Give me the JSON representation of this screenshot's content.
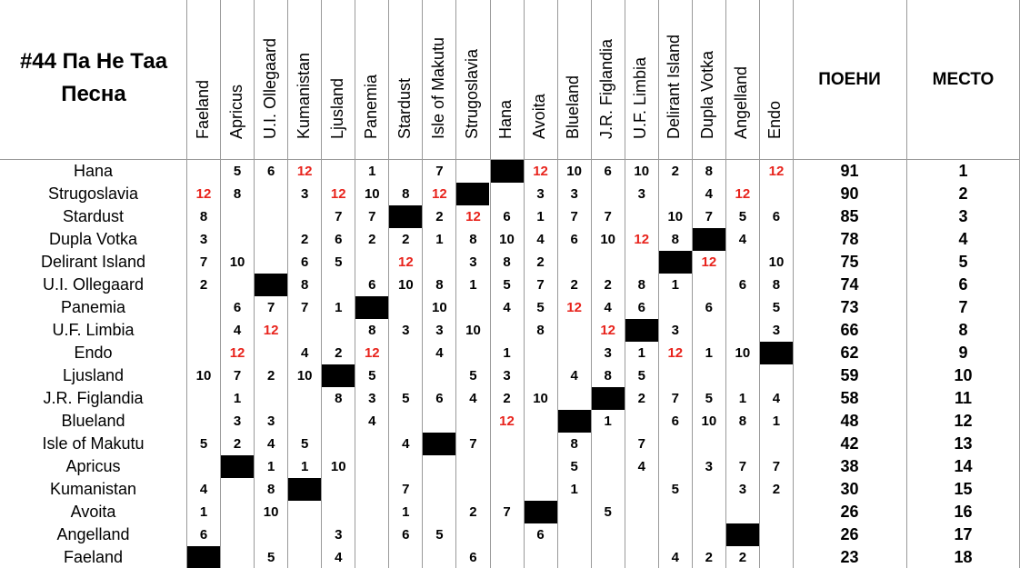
{
  "title": "#44 Па Не Таа Песна",
  "columns": [
    "Faeland",
    "Apricus",
    "U.I. Ollegaard",
    "Kumanistan",
    "Ljusland",
    "Panemia",
    "Stardust",
    "Isle of Makutu",
    "Strugoslavia",
    "Hana",
    "Avoita",
    "Blueland",
    "J.R. Figlandia",
    "U.F. Limbia",
    "Delirant Island",
    "Dupla Votka",
    "Angelland",
    "Endo"
  ],
  "total_header": "ПОЕНИ",
  "place_header": "МЕСТО",
  "rows": [
    {
      "country": "Hana",
      "votes": [
        null,
        5,
        6,
        12,
        null,
        1,
        null,
        7,
        null,
        null,
        12,
        10,
        6,
        10,
        2,
        8,
        null,
        12
      ],
      "total": 91,
      "place": 1
    },
    {
      "country": "Strugoslavia",
      "votes": [
        12,
        8,
        null,
        3,
        12,
        10,
        8,
        12,
        null,
        null,
        3,
        3,
        null,
        3,
        null,
        4,
        12,
        null
      ],
      "total": 90,
      "place": 2
    },
    {
      "country": "Stardust",
      "votes": [
        8,
        null,
        null,
        null,
        7,
        7,
        null,
        2,
        12,
        6,
        1,
        7,
        7,
        null,
        10,
        7,
        5,
        6
      ],
      "total": 85,
      "place": 3
    },
    {
      "country": "Dupla Votka",
      "votes": [
        3,
        null,
        null,
        2,
        6,
        2,
        2,
        1,
        8,
        10,
        4,
        6,
        10,
        12,
        8,
        null,
        4,
        null
      ],
      "total": 78,
      "place": 4
    },
    {
      "country": "Delirant Island",
      "votes": [
        7,
        10,
        null,
        6,
        5,
        null,
        12,
        null,
        3,
        8,
        2,
        null,
        null,
        null,
        null,
        12,
        null,
        10
      ],
      "total": 75,
      "place": 5
    },
    {
      "country": "U.I. Ollegaard",
      "votes": [
        2,
        null,
        null,
        8,
        null,
        6,
        10,
        8,
        1,
        5,
        7,
        2,
        2,
        8,
        1,
        null,
        6,
        8
      ],
      "total": 74,
      "place": 6
    },
    {
      "country": "Panemia",
      "votes": [
        null,
        6,
        7,
        7,
        1,
        null,
        null,
        10,
        null,
        4,
        5,
        12,
        4,
        6,
        null,
        6,
        null,
        5
      ],
      "total": 73,
      "place": 7
    },
    {
      "country": "U.F. Limbia",
      "votes": [
        null,
        4,
        12,
        null,
        null,
        8,
        3,
        3,
        10,
        null,
        8,
        null,
        12,
        null,
        3,
        null,
        null,
        3
      ],
      "total": 66,
      "place": 8
    },
    {
      "country": "Endo",
      "votes": [
        null,
        12,
        null,
        4,
        2,
        12,
        null,
        4,
        null,
        1,
        null,
        null,
        3,
        1,
        12,
        1,
        10,
        null
      ],
      "total": 62,
      "place": 9
    },
    {
      "country": "Ljusland",
      "votes": [
        10,
        7,
        2,
        10,
        null,
        5,
        null,
        null,
        5,
        3,
        null,
        4,
        8,
        5,
        null,
        null,
        null,
        null
      ],
      "total": 59,
      "place": 10
    },
    {
      "country": "J.R. Figlandia",
      "votes": [
        null,
        1,
        null,
        null,
        8,
        3,
        5,
        6,
        4,
        2,
        10,
        null,
        null,
        2,
        7,
        5,
        1,
        4
      ],
      "total": 58,
      "place": 11
    },
    {
      "country": "Blueland",
      "votes": [
        null,
        3,
        3,
        null,
        null,
        4,
        null,
        null,
        null,
        12,
        null,
        null,
        1,
        null,
        6,
        10,
        8,
        1
      ],
      "total": 48,
      "place": 12
    },
    {
      "country": "Isle of Makutu",
      "votes": [
        5,
        2,
        4,
        5,
        null,
        null,
        4,
        null,
        7,
        null,
        null,
        8,
        null,
        7,
        null,
        null,
        null,
        null
      ],
      "total": 42,
      "place": 13
    },
    {
      "country": "Apricus",
      "votes": [
        null,
        null,
        1,
        1,
        10,
        null,
        null,
        null,
        null,
        null,
        null,
        5,
        null,
        4,
        null,
        3,
        7,
        7
      ],
      "total": 38,
      "place": 14
    },
    {
      "country": "Kumanistan",
      "votes": [
        4,
        null,
        8,
        null,
        null,
        null,
        7,
        null,
        null,
        null,
        null,
        1,
        null,
        null,
        5,
        null,
        3,
        2
      ],
      "total": 30,
      "place": 15
    },
    {
      "country": "Avoita",
      "votes": [
        1,
        null,
        10,
        null,
        null,
        null,
        1,
        null,
        2,
        7,
        null,
        null,
        5,
        null,
        null,
        null,
        null,
        null
      ],
      "total": 26,
      "place": 16
    },
    {
      "country": "Angelland",
      "votes": [
        6,
        null,
        null,
        null,
        3,
        null,
        6,
        5,
        null,
        null,
        6,
        null,
        null,
        null,
        null,
        null,
        null,
        null
      ],
      "total": 26,
      "place": 17
    },
    {
      "country": "Faeland",
      "votes": [
        null,
        null,
        5,
        null,
        4,
        null,
        null,
        null,
        6,
        null,
        null,
        null,
        null,
        null,
        4,
        2,
        2,
        null
      ],
      "total": 23,
      "place": 18
    }
  ]
}
